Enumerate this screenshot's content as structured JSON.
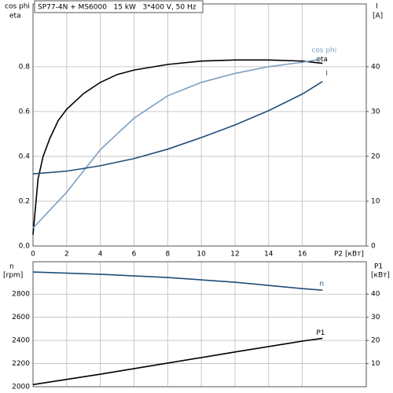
{
  "chart_data": [
    {
      "type": "line",
      "title": "SP77-4N + MS6000   15 kW   3*400 V, 50 Hz",
      "y_label": [
        "cos phi",
        "eta"
      ],
      "y2_label": [
        "I",
        "[A]"
      ],
      "x_label": "P2 [кВт]",
      "xlim": [
        0,
        19.8
      ],
      "xticks": [
        0,
        2,
        4,
        6,
        8,
        10,
        12,
        14,
        16
      ],
      "ylim": [
        0,
        1.08
      ],
      "yticks": [
        {
          "value": 0,
          "label": "0.0"
        },
        0.2,
        0.4,
        0.6,
        0.8
      ],
      "y2lim": [
        0,
        54
      ],
      "y2ticks": [
        0,
        10,
        20,
        30,
        40
      ],
      "grid": true,
      "series": [
        {
          "name": "eta",
          "color": "#000000",
          "x": [
            0,
            0.3,
            0.6,
            1,
            1.5,
            2,
            3,
            4,
            5,
            6,
            8,
            10,
            12,
            14,
            16,
            17.2
          ],
          "values": [
            0.05,
            0.3,
            0.4,
            0.48,
            0.56,
            0.61,
            0.68,
            0.73,
            0.765,
            0.785,
            0.81,
            0.825,
            0.83,
            0.83,
            0.825,
            0.815
          ]
        },
        {
          "name": "cos phi",
          "color": "#7d9fc0",
          "x": [
            0,
            2,
            4,
            6,
            8,
            10,
            12,
            14,
            16,
            17.2
          ],
          "values": [
            0.08,
            0.24,
            0.43,
            0.57,
            0.67,
            0.73,
            0.77,
            0.8,
            0.82,
            0.835
          ]
        },
        {
          "name": "I",
          "color": "#1f4e79",
          "axis": "y2",
          "x": [
            0,
            2,
            4,
            6,
            8,
            10,
            12,
            14,
            16,
            17.2
          ],
          "values": [
            16.1,
            16.7,
            17.9,
            19.5,
            21.6,
            24.2,
            27,
            30.2,
            33.9,
            36.7
          ]
        }
      ]
    },
    {
      "type": "line",
      "y_label": [
        "n",
        "[rpm]"
      ],
      "y2_label": [
        "P1",
        "[кВт]"
      ],
      "xlim": [
        0,
        19.8
      ],
      "xticks": [
        0,
        2,
        4,
        6,
        8,
        10,
        12,
        14,
        16
      ],
      "ylim": [
        2000,
        3080
      ],
      "yticks": [
        2000,
        2200,
        2400,
        2600,
        2800
      ],
      "y2lim": [
        0,
        54
      ],
      "y2ticks": [
        10,
        20,
        30,
        40
      ],
      "grid": true,
      "series": [
        {
          "name": "n",
          "color": "#1f4e79",
          "x": [
            0,
            4,
            8,
            12,
            16,
            17.2
          ],
          "values": [
            2991,
            2972,
            2944,
            2903,
            2848,
            2834
          ]
        },
        {
          "name": "P1",
          "color": "#000000",
          "axis": "y2",
          "x": [
            0,
            4,
            8,
            12,
            16,
            17.2
          ],
          "values": [
            0.9,
            5.4,
            10.2,
            15,
            19.7,
            20.9
          ]
        }
      ]
    }
  ]
}
